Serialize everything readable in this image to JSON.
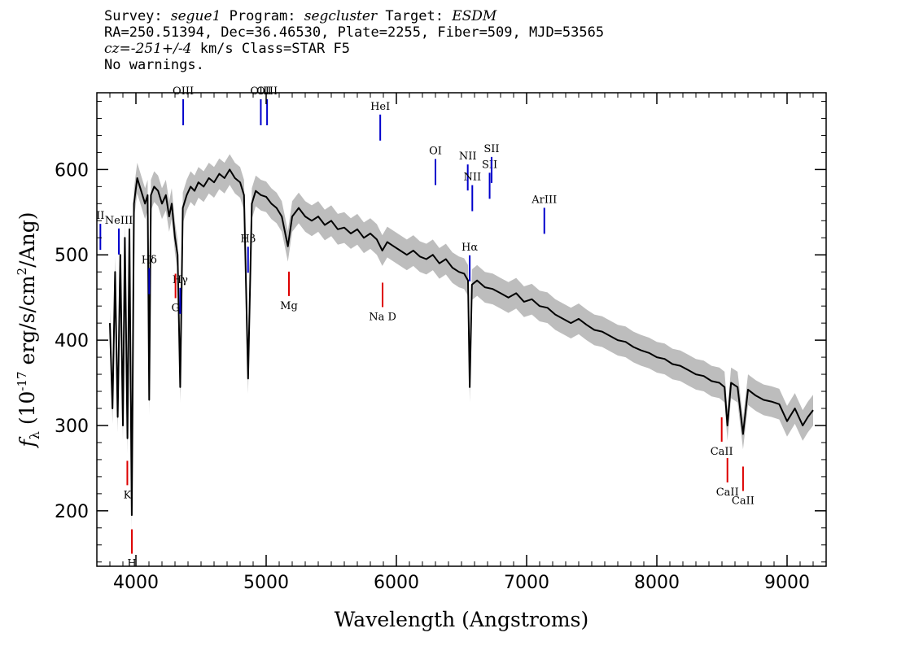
{
  "header": {
    "line1_a": "Survey: ",
    "line1_b": "segue1",
    "line1_c": " Program: ",
    "line1_d": "segcluster",
    "line1_e": " Target: ",
    "line1_f": "ESDM",
    "line2": "RA=250.51394, Dec=36.46530, Plate=2255, Fiber=509, MJD=53565",
    "line3_a": "cz=",
    "line3_b": "-251+/-4",
    "line3_c": " km/s Class=STAR F5",
    "line4": "No warnings."
  },
  "chart_data": {
    "type": "line",
    "xlabel": "Wavelength (Angstroms)",
    "ylabel": "f_λ (10^-17 erg/s/cm^2/Ang)",
    "ylabel_parts": [
      "f",
      "λ",
      " (10",
      "-17",
      " erg/s/cm",
      "2",
      "/Ang)"
    ],
    "xlim": [
      3700,
      9300
    ],
    "ylim": [
      135,
      690
    ],
    "xticks": [
      4000,
      5000,
      6000,
      7000,
      8000,
      9000
    ],
    "yticks": [
      200,
      300,
      400,
      500,
      600
    ],
    "series": [
      {
        "role": "flux",
        "color": "#000000",
        "points": [
          [
            3800,
            420
          ],
          [
            3820,
            320
          ],
          [
            3840,
            480
          ],
          [
            3860,
            310
          ],
          [
            3880,
            500
          ],
          [
            3900,
            300
          ],
          [
            3915,
            520
          ],
          [
            3935,
            285
          ],
          [
            3950,
            530
          ],
          [
            3968,
            195
          ],
          [
            3985,
            560
          ],
          [
            4010,
            590
          ],
          [
            4040,
            575
          ],
          [
            4070,
            560
          ],
          [
            4090,
            570
          ],
          [
            4102,
            330
          ],
          [
            4115,
            570
          ],
          [
            4140,
            580
          ],
          [
            4170,
            575
          ],
          [
            4200,
            560
          ],
          [
            4230,
            570
          ],
          [
            4255,
            545
          ],
          [
            4275,
            560
          ],
          [
            4300,
            520
          ],
          [
            4320,
            500
          ],
          [
            4340,
            345
          ],
          [
            4360,
            555
          ],
          [
            4390,
            570
          ],
          [
            4420,
            580
          ],
          [
            4450,
            575
          ],
          [
            4480,
            585
          ],
          [
            4520,
            580
          ],
          [
            4560,
            590
          ],
          [
            4600,
            585
          ],
          [
            4640,
            595
          ],
          [
            4680,
            590
          ],
          [
            4720,
            600
          ],
          [
            4760,
            590
          ],
          [
            4800,
            585
          ],
          [
            4830,
            570
          ],
          [
            4861,
            355
          ],
          [
            4890,
            560
          ],
          [
            4920,
            575
          ],
          [
            4960,
            570
          ],
          [
            5000,
            568
          ],
          [
            5040,
            560
          ],
          [
            5080,
            555
          ],
          [
            5120,
            545
          ],
          [
            5167,
            510
          ],
          [
            5200,
            545
          ],
          [
            5250,
            555
          ],
          [
            5300,
            545
          ],
          [
            5350,
            540
          ],
          [
            5400,
            545
          ],
          [
            5450,
            535
          ],
          [
            5500,
            540
          ],
          [
            5550,
            530
          ],
          [
            5600,
            532
          ],
          [
            5650,
            525
          ],
          [
            5700,
            530
          ],
          [
            5750,
            520
          ],
          [
            5800,
            525
          ],
          [
            5850,
            518
          ],
          [
            5892,
            505
          ],
          [
            5930,
            515
          ],
          [
            5980,
            510
          ],
          [
            6030,
            505
          ],
          [
            6080,
            500
          ],
          [
            6130,
            505
          ],
          [
            6180,
            498
          ],
          [
            6230,
            495
          ],
          [
            6280,
            500
          ],
          [
            6330,
            490
          ],
          [
            6380,
            495
          ],
          [
            6430,
            485
          ],
          [
            6480,
            480
          ],
          [
            6520,
            478
          ],
          [
            6550,
            470
          ],
          [
            6563,
            345
          ],
          [
            6580,
            465
          ],
          [
            6620,
            470
          ],
          [
            6680,
            462
          ],
          [
            6740,
            460
          ],
          [
            6800,
            455
          ],
          [
            6860,
            450
          ],
          [
            6920,
            455
          ],
          [
            6980,
            445
          ],
          [
            7040,
            448
          ],
          [
            7100,
            440
          ],
          [
            7160,
            438
          ],
          [
            7220,
            430
          ],
          [
            7280,
            425
          ],
          [
            7340,
            420
          ],
          [
            7400,
            425
          ],
          [
            7460,
            418
          ],
          [
            7520,
            412
          ],
          [
            7580,
            410
          ],
          [
            7640,
            405
          ],
          [
            7700,
            400
          ],
          [
            7760,
            398
          ],
          [
            7820,
            392
          ],
          [
            7880,
            388
          ],
          [
            7940,
            385
          ],
          [
            8000,
            380
          ],
          [
            8060,
            378
          ],
          [
            8120,
            372
          ],
          [
            8180,
            370
          ],
          [
            8240,
            365
          ],
          [
            8300,
            360
          ],
          [
            8360,
            358
          ],
          [
            8420,
            352
          ],
          [
            8480,
            350
          ],
          [
            8520,
            345
          ],
          [
            8542,
            300
          ],
          [
            8570,
            350
          ],
          [
            8620,
            345
          ],
          [
            8662,
            290
          ],
          [
            8700,
            342
          ],
          [
            8760,
            335
          ],
          [
            8820,
            330
          ],
          [
            8880,
            328
          ],
          [
            8940,
            325
          ],
          [
            9000,
            305
          ],
          [
            9060,
            320
          ],
          [
            9120,
            300
          ],
          [
            9160,
            310
          ],
          [
            9200,
            318
          ]
        ]
      }
    ],
    "emission_lines": [
      {
        "label": "II",
        "wave": 3727
      },
      {
        "label": "NeIII",
        "wave": 3869
      },
      {
        "label": "Hδ",
        "wave": 4102
      },
      {
        "label": "Hγ",
        "wave": 4340
      },
      {
        "label": "OIII",
        "wave": 4363
      },
      {
        "label": "Hβ",
        "wave": 4861
      },
      {
        "label": "OIII",
        "wave": 4959
      },
      {
        "label": "OIII",
        "wave": 5007
      },
      {
        "label": "HeI",
        "wave": 5876
      },
      {
        "label": "OI",
        "wave": 6300
      },
      {
        "label": "NII",
        "wave": 6548
      },
      {
        "label": "Hα",
        "wave": 6563
      },
      {
        "label": "NII",
        "wave": 6583
      },
      {
        "label": "SII",
        "wave": 6716
      },
      {
        "label": "SII",
        "wave": 6731
      },
      {
        "label": "ArIII",
        "wave": 7136
      }
    ],
    "absorption_lines": [
      {
        "label": "K",
        "wave": 3934
      },
      {
        "label": "H",
        "wave": 3969
      },
      {
        "label": "G",
        "wave": 4304
      },
      {
        "label": "Mg",
        "wave": 5175
      },
      {
        "label": "Na D",
        "wave": 5894
      },
      {
        "label": "CaII",
        "wave": 8498
      },
      {
        "label": "CaII",
        "wave": 8542
      },
      {
        "label": "CaII",
        "wave": 8662
      }
    ],
    "colors": {
      "flux": "#000000",
      "error_band": "#bdbdbd",
      "emission": "#0000cc",
      "absorption": "#dd0000"
    }
  }
}
